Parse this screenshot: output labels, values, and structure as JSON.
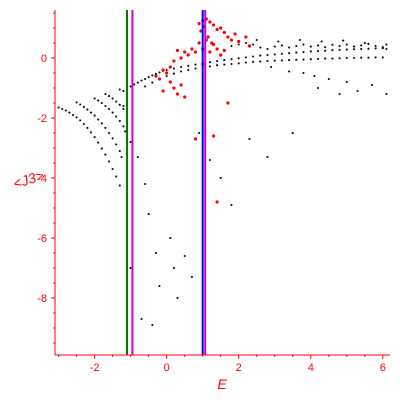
{
  "chart_data": {
    "type": "scatter",
    "title": "",
    "xlabel": "E",
    "ylabel": "<J3>",
    "xlim": [
      -3.1,
      6.2
    ],
    "ylim": [
      -9.9,
      1.6
    ],
    "grid": false,
    "legend": "none",
    "xticks": [
      -2,
      0,
      2,
      4,
      6
    ],
    "yticks": [
      0,
      -2,
      -4,
      -6,
      -8
    ],
    "axis_color": "#ff0000",
    "vertical_lines": [
      {
        "x": -1.1,
        "color": "#007700"
      },
      {
        "x": -0.95,
        "color": "#cc00cc"
      },
      {
        "x": 1.0,
        "color": "#0000ff"
      },
      {
        "x": 1.07,
        "color": "#cc00cc"
      }
    ],
    "series": [
      {
        "color": "#000000",
        "marker_size": 1.5,
        "points": [
          [
            -3.0,
            -1.65
          ],
          [
            -2.9,
            -1.7
          ],
          [
            -2.8,
            -1.75
          ],
          [
            -2.7,
            -1.82
          ],
          [
            -2.6,
            -1.9
          ],
          [
            -2.5,
            -1.98
          ],
          [
            -2.4,
            -2.08
          ],
          [
            -2.3,
            -2.2
          ],
          [
            -2.2,
            -2.33
          ],
          [
            -2.1,
            -2.48
          ],
          [
            -2.0,
            -2.64
          ],
          [
            -1.9,
            -2.82
          ],
          [
            -1.8,
            -3.02
          ],
          [
            -1.7,
            -3.22
          ],
          [
            -1.6,
            -3.45
          ],
          [
            -1.5,
            -3.7
          ],
          [
            -1.4,
            -3.95
          ],
          [
            -1.3,
            -4.25
          ],
          [
            -2.5,
            -1.48
          ],
          [
            -2.4,
            -1.55
          ],
          [
            -2.3,
            -1.63
          ],
          [
            -2.2,
            -1.72
          ],
          [
            -2.1,
            -1.82
          ],
          [
            -2.0,
            -1.92
          ],
          [
            -1.9,
            -2.05
          ],
          [
            -1.8,
            -2.18
          ],
          [
            -1.7,
            -2.33
          ],
          [
            -1.6,
            -2.5
          ],
          [
            -1.5,
            -2.68
          ],
          [
            -1.4,
            -2.88
          ],
          [
            -1.3,
            -3.1
          ],
          [
            -1.25,
            -3.3
          ],
          [
            -2.0,
            -1.35
          ],
          [
            -1.9,
            -1.42
          ],
          [
            -1.8,
            -1.5
          ],
          [
            -1.7,
            -1.6
          ],
          [
            -1.6,
            -1.7
          ],
          [
            -1.5,
            -1.82
          ],
          [
            -1.4,
            -1.95
          ],
          [
            -1.3,
            -2.1
          ],
          [
            -1.2,
            -2.28
          ],
          [
            -1.15,
            -2.45
          ],
          [
            -1.7,
            -1.2
          ],
          [
            -1.6,
            -1.27
          ],
          [
            -1.5,
            -1.35
          ],
          [
            -1.4,
            -1.45
          ],
          [
            -1.3,
            -1.56
          ],
          [
            -1.2,
            -1.7
          ],
          [
            -1.3,
            -1.05
          ],
          [
            -1.2,
            -1.1
          ],
          [
            -1.1,
            -1.0
          ],
          [
            -1.0,
            -0.95
          ],
          [
            -0.9,
            -0.88
          ],
          [
            -0.8,
            -0.82
          ],
          [
            -0.7,
            -0.75
          ],
          [
            -0.6,
            -0.7
          ],
          [
            -0.5,
            -0.64
          ],
          [
            -0.4,
            -0.58
          ],
          [
            -0.3,
            -0.53
          ],
          [
            -0.2,
            -0.48
          ],
          [
            -0.1,
            -0.43
          ],
          [
            0.0,
            -0.4
          ],
          [
            0.2,
            -0.35
          ],
          [
            0.4,
            -0.3
          ],
          [
            0.6,
            -0.26
          ],
          [
            0.8,
            -0.22
          ],
          [
            1.0,
            -0.18
          ],
          [
            1.2,
            -0.14
          ],
          [
            1.4,
            -0.1
          ],
          [
            1.6,
            -0.07
          ],
          [
            1.8,
            -0.04
          ],
          [
            2.0,
            -0.01
          ],
          [
            2.2,
            0.02
          ],
          [
            2.4,
            0.05
          ],
          [
            2.6,
            0.08
          ],
          [
            2.8,
            0.1
          ],
          [
            3.0,
            0.12
          ],
          [
            3.2,
            0.14
          ],
          [
            3.4,
            0.16
          ],
          [
            3.6,
            0.18
          ],
          [
            3.8,
            0.2
          ],
          [
            4.0,
            0.22
          ],
          [
            4.2,
            0.23
          ],
          [
            4.4,
            0.24
          ],
          [
            4.6,
            0.26
          ],
          [
            4.8,
            0.27
          ],
          [
            5.0,
            0.28
          ],
          [
            5.2,
            0.29
          ],
          [
            5.4,
            0.3
          ],
          [
            5.6,
            0.31
          ],
          [
            5.8,
            0.32
          ],
          [
            6.0,
            0.33
          ],
          [
            -0.6,
            -0.95
          ],
          [
            -0.4,
            -0.82
          ],
          [
            -0.2,
            -0.7
          ],
          [
            0.0,
            -0.6
          ],
          [
            0.2,
            -0.52
          ],
          [
            0.4,
            -0.45
          ],
          [
            0.6,
            -0.4
          ],
          [
            0.8,
            -0.35
          ],
          [
            1.2,
            -0.28
          ],
          [
            1.4,
            -0.24
          ],
          [
            1.6,
            -0.22
          ],
          [
            1.8,
            -0.2
          ],
          [
            2.0,
            -0.18
          ],
          [
            2.2,
            -0.15
          ],
          [
            2.4,
            -0.13
          ],
          [
            2.6,
            -0.12
          ],
          [
            2.8,
            -0.1
          ],
          [
            3.0,
            -0.09
          ],
          [
            3.2,
            -0.08
          ],
          [
            3.4,
            -0.07
          ],
          [
            3.6,
            -0.06
          ],
          [
            3.8,
            -0.05
          ],
          [
            4.0,
            -0.04
          ],
          [
            4.2,
            -0.03
          ],
          [
            4.4,
            -0.02
          ],
          [
            4.6,
            -0.02
          ],
          [
            4.8,
            -0.01
          ],
          [
            5.0,
            0.0
          ],
          [
            5.2,
            0.0
          ],
          [
            5.4,
            0.01
          ],
          [
            5.6,
            0.01
          ],
          [
            5.8,
            0.02
          ],
          [
            6.0,
            0.02
          ],
          [
            1.8,
            0.4
          ],
          [
            2.0,
            0.45
          ],
          [
            2.2,
            0.5
          ],
          [
            2.4,
            0.45
          ],
          [
            2.6,
            0.35
          ],
          [
            2.8,
            0.3
          ],
          [
            3.0,
            0.38
          ],
          [
            3.2,
            0.42
          ],
          [
            3.4,
            0.35
          ],
          [
            3.6,
            0.4
          ],
          [
            3.8,
            0.45
          ],
          [
            4.0,
            0.38
          ],
          [
            4.2,
            0.42
          ],
          [
            4.4,
            0.36
          ],
          [
            4.6,
            0.44
          ],
          [
            4.8,
            0.4
          ],
          [
            5.0,
            0.45
          ],
          [
            5.2,
            0.38
          ],
          [
            5.4,
            0.42
          ],
          [
            5.6,
            0.47
          ],
          [
            5.8,
            0.4
          ],
          [
            6.0,
            0.36
          ],
          [
            6.1,
            0.3
          ],
          [
            2.5,
            0.6
          ],
          [
            3.1,
            0.55
          ],
          [
            3.7,
            0.6
          ],
          [
            4.3,
            0.55
          ],
          [
            4.9,
            0.58
          ],
          [
            5.5,
            0.5
          ],
          [
            6.1,
            0.45
          ],
          [
            2.9,
            -0.3
          ],
          [
            3.4,
            -0.45
          ],
          [
            3.8,
            -0.5
          ],
          [
            4.1,
            -0.6
          ],
          [
            4.5,
            -0.7
          ],
          [
            5.0,
            -0.8
          ],
          [
            5.3,
            -1.1
          ],
          [
            5.7,
            -0.9
          ],
          [
            6.1,
            -1.2
          ],
          [
            4.2,
            -1.0
          ],
          [
            4.8,
            -1.2
          ],
          [
            -1.0,
            -2.8
          ],
          [
            -0.8,
            -3.3
          ],
          [
            -0.6,
            -4.2
          ],
          [
            -0.5,
            -5.2
          ],
          [
            -0.3,
            -6.5
          ],
          [
            -0.2,
            -7.6
          ],
          [
            0.1,
            -6.0
          ],
          [
            0.2,
            -7.0
          ],
          [
            0.3,
            -8.0
          ],
          [
            0.5,
            -6.6
          ],
          [
            0.7,
            -7.3
          ],
          [
            -1.0,
            -7.0
          ],
          [
            -0.7,
            -8.7
          ],
          [
            -0.4,
            -8.9
          ],
          [
            0.9,
            -2.5
          ],
          [
            1.2,
            -3.4
          ],
          [
            1.5,
            -4.0
          ],
          [
            1.8,
            -4.9
          ],
          [
            2.3,
            -2.7
          ],
          [
            2.8,
            -3.3
          ],
          [
            3.5,
            -2.5
          ],
          [
            -1.1,
            -1.9
          ],
          [
            -1.2,
            -1.6
          ]
        ]
      },
      {
        "color": "#ff0000",
        "marker_size": 2.6,
        "points": [
          [
            0.9,
            1.15
          ],
          [
            1.0,
            1.25
          ],
          [
            1.1,
            1.3
          ],
          [
            1.2,
            1.2
          ],
          [
            1.3,
            1.1
          ],
          [
            1.4,
            0.95
          ],
          [
            1.5,
            1.0
          ],
          [
            1.6,
            0.85
          ],
          [
            1.7,
            0.7
          ],
          [
            1.8,
            0.6
          ],
          [
            1.9,
            0.8
          ],
          [
            2.0,
            0.55
          ],
          [
            2.2,
            0.7
          ],
          [
            2.3,
            0.4
          ],
          [
            0.9,
            0.5
          ],
          [
            1.0,
            0.3
          ],
          [
            1.1,
            0.6
          ],
          [
            1.2,
            0.2
          ],
          [
            1.3,
            0.45
          ],
          [
            1.4,
            0.3
          ],
          [
            1.5,
            0.1
          ],
          [
            1.6,
            0.25
          ],
          [
            0.8,
            0.2
          ],
          [
            0.7,
            0.3
          ],
          [
            0.6,
            0.1
          ],
          [
            0.5,
            0.2
          ],
          [
            0.4,
            0.0
          ],
          [
            0.3,
            0.25
          ],
          [
            0.2,
            -0.1
          ],
          [
            0.1,
            -0.3
          ],
          [
            0.0,
            -0.5
          ],
          [
            -0.1,
            -0.4
          ],
          [
            -0.2,
            -0.7
          ],
          [
            -0.3,
            -0.6
          ],
          [
            0.2,
            -1.0
          ],
          [
            0.3,
            -1.2
          ],
          [
            0.4,
            -0.9
          ],
          [
            0.1,
            -0.8
          ],
          [
            -0.1,
            -1.1
          ],
          [
            0.5,
            -1.3
          ],
          [
            0.8,
            -2.7
          ],
          [
            1.7,
            -1.5
          ],
          [
            1.3,
            -2.6
          ],
          [
            1.4,
            -4.8
          ],
          [
            1.0,
            -0.2
          ],
          [
            0.95,
            0.9
          ],
          [
            1.15,
            0.7
          ],
          [
            1.25,
            0.5
          ],
          [
            1.05,
            1.05
          ]
        ]
      }
    ]
  }
}
